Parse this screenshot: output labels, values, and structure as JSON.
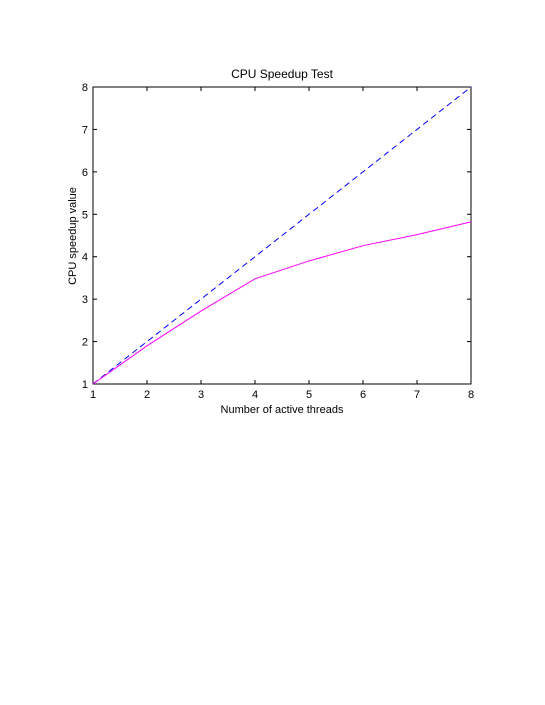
{
  "chart_data": {
    "type": "line",
    "title": "CPU Speedup Test",
    "xlabel": "Number of active threads",
    "ylabel": "CPU speedup value",
    "xlim": [
      1,
      8
    ],
    "ylim": [
      1,
      8
    ],
    "xticks": [
      1,
      2,
      3,
      4,
      5,
      6,
      7,
      8
    ],
    "yticks": [
      1,
      2,
      3,
      4,
      5,
      6,
      7,
      8
    ],
    "grid": false,
    "legend": "none",
    "x": [
      1,
      2,
      3,
      4,
      5,
      6,
      7,
      8
    ],
    "series": [
      {
        "values": [
          1,
          2,
          3,
          4,
          5,
          6,
          7,
          8
        ],
        "color": "#0000ff",
        "style": "dashed"
      },
      {
        "values": [
          1,
          1.9,
          2.72,
          3.48,
          3.9,
          4.26,
          4.52,
          4.82
        ],
        "color": "#ff00ff",
        "style": "solid"
      }
    ]
  }
}
